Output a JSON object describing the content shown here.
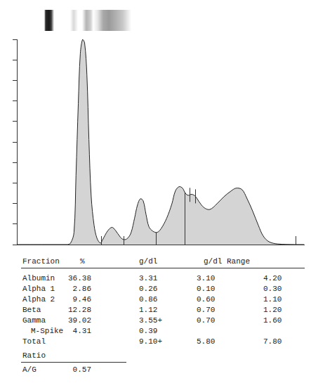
{
  "chart_data": {
    "type": "line",
    "x": [
      0,
      17.4,
      18.7,
      19.9,
      20.6,
      21.4,
      22.1,
      22.9,
      23.6,
      24.4,
      25.1,
      25.9,
      26.9,
      27.9,
      29.1,
      29.9,
      31.6,
      33.1,
      34.3,
      36.1,
      37.3,
      38.6,
      39.8,
      41.0,
      42.0,
      43.0,
      44.0,
      45.0,
      46.0,
      47.3,
      48.8,
      50.2,
      52.2,
      54.0,
      55.2,
      56.5,
      57.7,
      58.7,
      59.7,
      60.9,
      62.2,
      63.4,
      65.2,
      67.2,
      69.7,
      72.1,
      74.6,
      76.4,
      78.4,
      80.1,
      82.1,
      84.1,
      85.8,
      87.8,
      90.8,
      97.0,
      100
    ],
    "values": [
      0,
      0,
      0.07,
      0.59,
      3.38,
      6.86,
      9.3,
      10.0,
      9.83,
      8.26,
      5.12,
      2.33,
      0.94,
      0.31,
      0.07,
      0.24,
      0.66,
      0.84,
      0.7,
      0.35,
      0.24,
      0.31,
      0.59,
      1.29,
      1.92,
      2.23,
      2.13,
      1.46,
      0.87,
      0.66,
      0.59,
      0.77,
      1.29,
      1.99,
      2.61,
      2.82,
      2.75,
      2.5,
      2.4,
      2.45,
      2.35,
      2.1,
      1.8,
      1.71,
      1.99,
      2.33,
      2.61,
      2.75,
      2.68,
      2.26,
      1.64,
      0.94,
      0.42,
      0.14,
      0.03,
      0,
      0
    ],
    "color": "#d4d4d4",
    "xlim": [
      0,
      100
    ],
    "ylim": [
      0,
      10
    ],
    "yticks": [
      0,
      1,
      2,
      3,
      4,
      5,
      6,
      7,
      8,
      9,
      10
    ],
    "grid": false,
    "tick_labels": false,
    "dividers": [
      29.4,
      37.1,
      48.5,
      58.5,
      97.0
    ],
    "m_spike_markers": [
      60.2,
      62.2
    ]
  },
  "table": {
    "columns": [
      "Fraction",
      "%",
      "g/dl",
      "g/dl Range"
    ],
    "rows": [
      {
        "cells": [
          "Albumin",
          "36.38",
          "3.31",
          "3.10",
          "4.20"
        ]
      },
      {
        "cells": [
          "Alpha 1",
          "2.86",
          "0.26",
          "0.10",
          "0.30"
        ]
      },
      {
        "cells": [
          "Alpha 2",
          "9.46",
          "0.86",
          "0.60",
          "1.10"
        ]
      },
      {
        "cells": [
          "Beta",
          "12.28",
          "1.12",
          "0.70",
          "1.20"
        ]
      },
      {
        "cells": [
          "Gamma",
          "39.02",
          "3.55+",
          "0.70",
          "1.60"
        ]
      },
      {
        "cells": [
          "M-Spike",
          "4.31",
          "0.39",
          null,
          null
        ],
        "indent": true
      },
      {
        "cells": [
          "Total",
          null,
          "9.10+",
          "5.80",
          "7.80"
        ]
      }
    ]
  },
  "ratio": {
    "title": "Ratio",
    "label": "A/G",
    "value": "0.57"
  }
}
